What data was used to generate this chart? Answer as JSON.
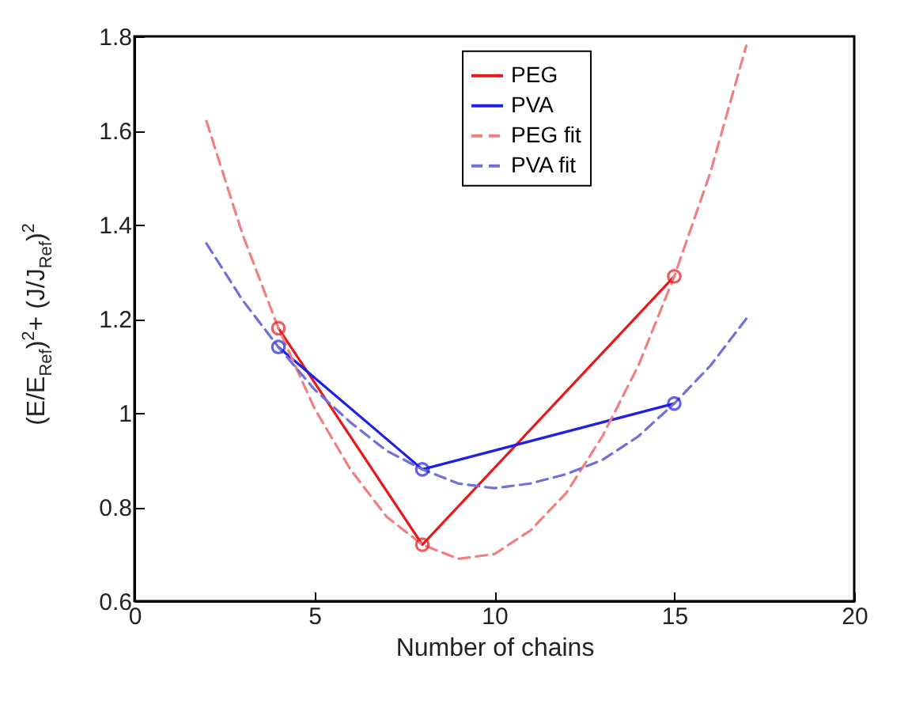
{
  "chart_data": {
    "type": "line",
    "xlabel": "Number of chains",
    "ylabel": "(E/E$_{Ref}$)$^{2}$+ (J/J$_{Ref}$)$^{2}$",
    "xlim": [
      0,
      20
    ],
    "xticks": [
      0,
      5,
      10,
      15,
      20
    ],
    "ylim": [
      0.6,
      1.8
    ],
    "yticks": [
      0.6,
      0.8,
      1,
      1.2,
      1.4,
      1.6,
      1.8
    ],
    "grid": false,
    "legend": "top right",
    "series": [
      {
        "name": "PEG",
        "color": "#e41a1c",
        "x": [
          4,
          8,
          15
        ],
        "values": [
          1.18,
          0.72,
          1.29
        ],
        "marker": "circle",
        "line_style": "solid"
      },
      {
        "name": "PVA",
        "color": "#1f1fe6",
        "x": [
          4,
          8,
          15
        ],
        "values": [
          1.14,
          0.88,
          1.02
        ],
        "marker": "circle",
        "line_style": "solid"
      },
      {
        "name": "PEG fit",
        "color": "#f08080",
        "x": [
          2,
          3,
          4,
          5,
          6,
          7,
          8,
          9,
          10,
          11,
          12,
          13,
          14,
          15,
          16,
          17
        ],
        "values": [
          1.62,
          1.38,
          1.18,
          1.01,
          0.88,
          0.78,
          0.72,
          0.69,
          0.7,
          0.75,
          0.83,
          0.95,
          1.1,
          1.29,
          1.51,
          1.78
        ],
        "marker": "none",
        "line_style": "dashed"
      },
      {
        "name": "PVA fit",
        "color": "#7070d8",
        "x": [
          2,
          3,
          4,
          5,
          6,
          7,
          8,
          9,
          10,
          11,
          12,
          13,
          14,
          15,
          16,
          17
        ],
        "values": [
          1.36,
          1.24,
          1.14,
          1.05,
          0.98,
          0.92,
          0.88,
          0.85,
          0.84,
          0.85,
          0.87,
          0.9,
          0.95,
          1.02,
          1.1,
          1.2
        ],
        "marker": "none",
        "line_style": "dashed"
      }
    ]
  }
}
